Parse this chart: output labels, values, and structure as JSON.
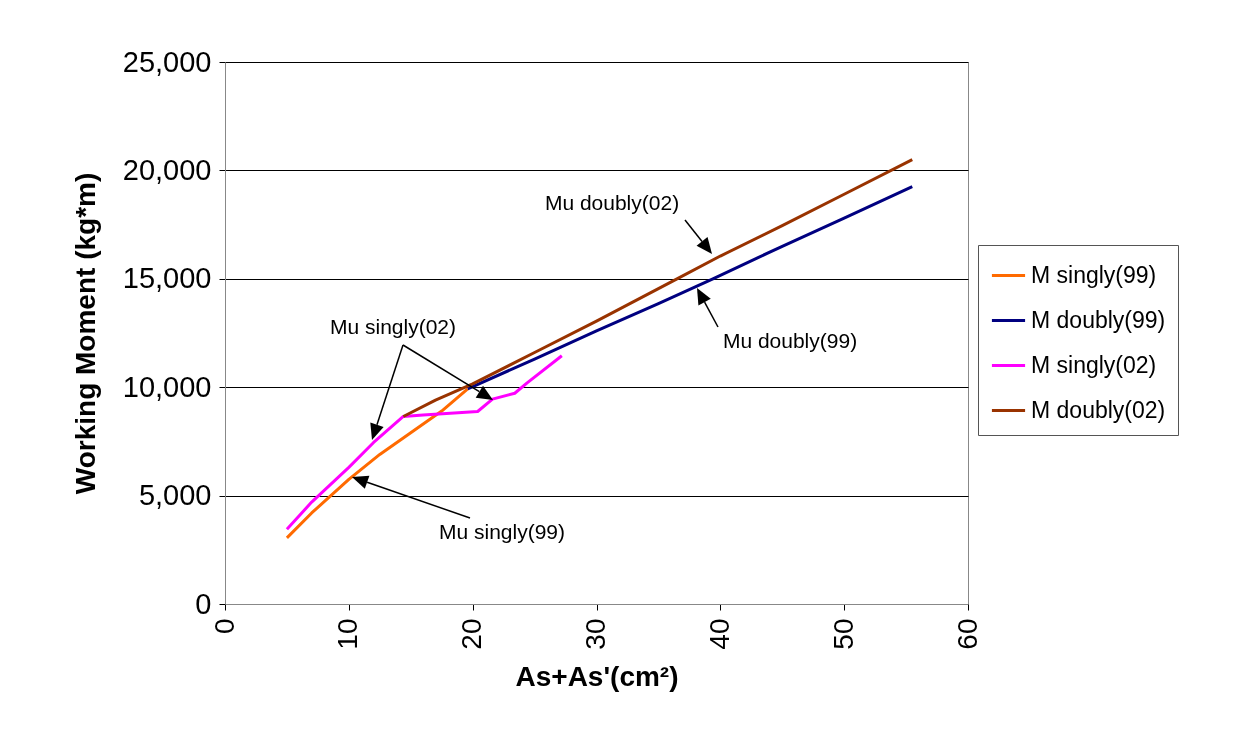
{
  "chart_data": {
    "type": "line",
    "xlabel": "As+As'(cm²)",
    "ylabel": "Working Moment (kg*m)",
    "xlim": [
      0,
      60
    ],
    "xticks": [
      0,
      10,
      20,
      30,
      40,
      50,
      60
    ],
    "ylim": [
      0,
      25000
    ],
    "yticks": [
      0,
      {
        "value": 5000,
        "label": "5,000"
      },
      {
        "value": 10000,
        "label": "10,000"
      },
      {
        "value": 15000,
        "label": "15,000"
      },
      {
        "value": 20000,
        "label": "20,000"
      },
      {
        "value": 25000,
        "label": "25,000"
      }
    ],
    "grid": "y",
    "legend": "right",
    "marker": "none",
    "line_style": "solid",
    "series": [
      {
        "name": "M singly(99)",
        "color": "#ff6a00",
        "x": [
          5,
          7,
          10,
          12.5,
          15,
          17.5,
          19.6
        ],
        "values": [
          3050,
          4200,
          5750,
          6900,
          7900,
          8900,
          9920
        ]
      },
      {
        "name": "M doubly(99)",
        "color": "#000080",
        "x": [
          19.6,
          25,
          30,
          35,
          39.4,
          45,
          50,
          55.5
        ],
        "values": [
          9920,
          11300,
          12600,
          13850,
          15000,
          16500,
          17800,
          19250
        ]
      },
      {
        "name": "M singly(02)",
        "color": "#ff00ff",
        "x": [
          5,
          7,
          10,
          12,
          14.4,
          16,
          18.2,
          20.4,
          21.6,
          23.4,
          24.4,
          27.2
        ],
        "values": [
          3450,
          4700,
          6300,
          7450,
          8650,
          8720,
          8800,
          8880,
          9450,
          9720,
          10200,
          11450
        ]
      },
      {
        "name": "M doubly(02)",
        "color": "#993300",
        "x": [
          14.4,
          17,
          20,
          25,
          30,
          36.5,
          40,
          45,
          50,
          55.5
        ],
        "values": [
          8650,
          9400,
          10150,
          11600,
          13050,
          15000,
          16050,
          17450,
          18900,
          20500
        ]
      }
    ],
    "annotations": [
      "Mu singly(02)",
      "Mu singly(99)",
      "Mu doubly(02)",
      "Mu doubly(99)"
    ]
  }
}
